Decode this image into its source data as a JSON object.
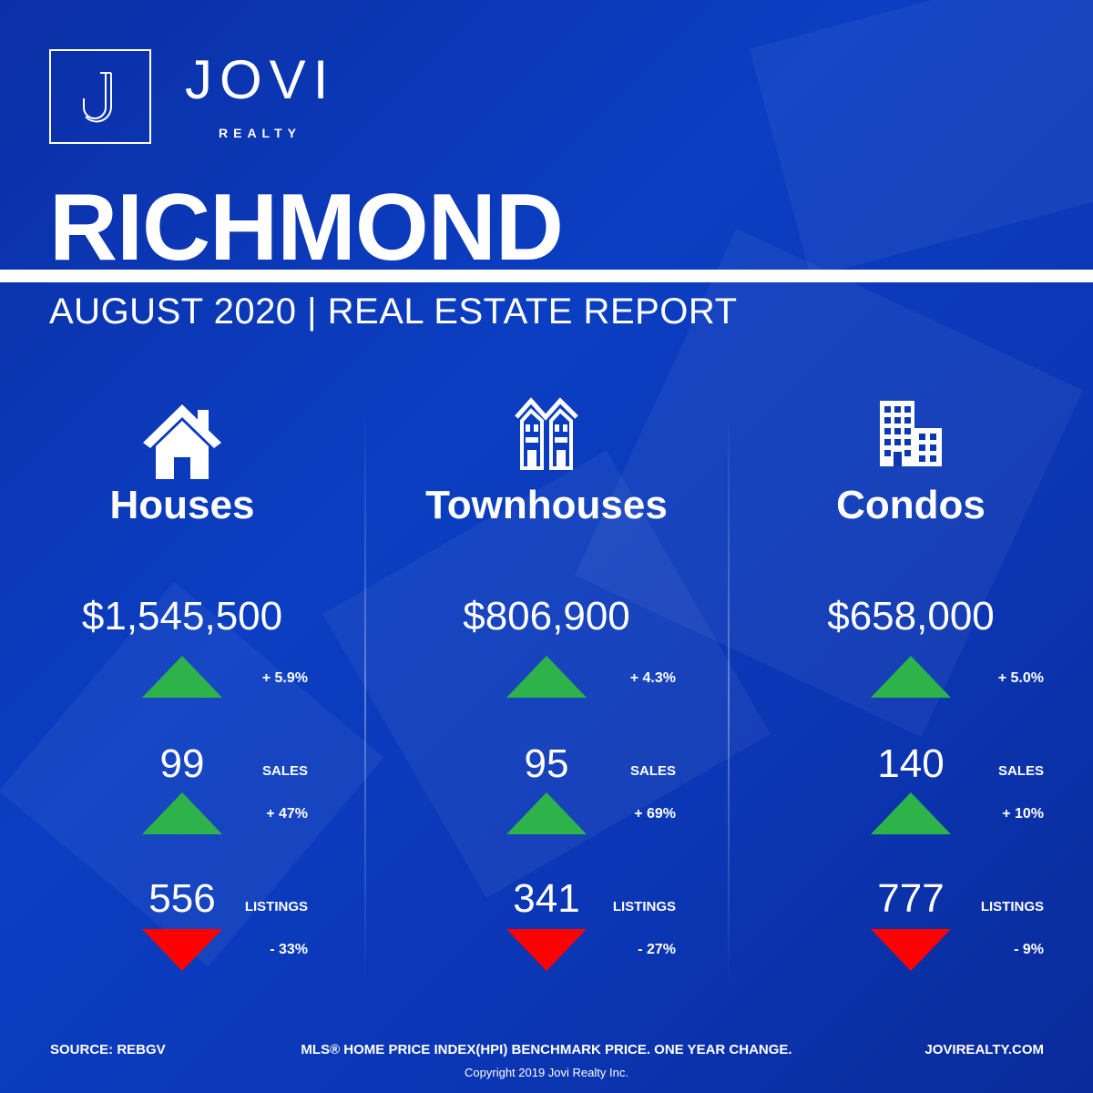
{
  "brand": {
    "name": "JOVI",
    "sub": "REALTY",
    "logo_letter": "J"
  },
  "header": {
    "city": "RICHMOND",
    "subtitle": "AUGUST 2020 | REAL ESTATE REPORT"
  },
  "colors": {
    "background": "#0b36b4",
    "up": "#2db34a",
    "down": "#ff0000"
  },
  "columns": [
    {
      "icon": "house-icon",
      "title": "Houses",
      "price": "$1,545,500",
      "price_change": "+ 5.9%",
      "price_trend": "up",
      "sales": "99",
      "sales_label": "SALES",
      "sales_change": "+ 47%",
      "sales_trend": "up",
      "listings": "556",
      "listings_label": "LISTINGS",
      "listings_change": "- 33%",
      "listings_trend": "down"
    },
    {
      "icon": "townhouse-icon",
      "title": "Townhouses",
      "price": "$806,900",
      "price_change": "+ 4.3%",
      "price_trend": "up",
      "sales": "95",
      "sales_label": "SALES",
      "sales_change": "+ 69%",
      "sales_trend": "up",
      "listings": "341",
      "listings_label": "LISTINGS",
      "listings_change": "- 27%",
      "listings_trend": "down"
    },
    {
      "icon": "condo-building-icon",
      "title": "Condos",
      "price": "$658,000",
      "price_change": "+ 5.0%",
      "price_trend": "up",
      "sales": "140",
      "sales_label": "SALES",
      "sales_change": "+ 10%",
      "sales_trend": "up",
      "listings": "777",
      "listings_label": "LISTINGS",
      "listings_change": "- 9%",
      "listings_trend": "down"
    }
  ],
  "footer": {
    "source": "SOURCE:  REBGV",
    "note": "MLS® HOME PRICE INDEX(HPI) BENCHMARK PRICE. ONE YEAR CHANGE.",
    "website": "JOVIREALTY.COM",
    "copyright": "Copyright 2019 Jovi Realty Inc."
  }
}
